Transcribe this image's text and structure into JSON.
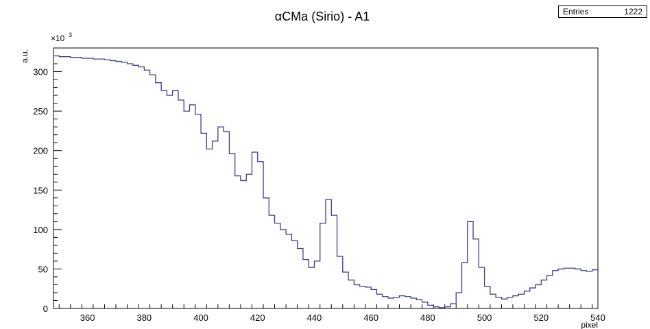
{
  "title": "αCMa (Sirio) - A1",
  "stats": {
    "label": "Entries",
    "value": "1222"
  },
  "chart_data": {
    "type": "line",
    "subtype": "step-histogram",
    "title": "αCMa (Sirio) - A1",
    "xlabel": "pixel",
    "ylabel": "a.u.",
    "y_exponent_label": "×10",
    "y_exponent_power": "3",
    "xlim": [
      348,
      540
    ],
    "ylim": [
      0,
      330
    ],
    "xticks": [
      360,
      380,
      400,
      420,
      440,
      460,
      480,
      500,
      520,
      540
    ],
    "yticks": [
      0,
      50,
      100,
      150,
      200,
      250,
      300
    ],
    "grid": false,
    "line_color": "#3b3b8f",
    "x": [
      348,
      350,
      352,
      354,
      356,
      358,
      360,
      362,
      364,
      366,
      368,
      370,
      372,
      374,
      376,
      378,
      380,
      382,
      384,
      386,
      388,
      390,
      392,
      394,
      396,
      398,
      400,
      402,
      404,
      406,
      408,
      410,
      412,
      414,
      416,
      418,
      420,
      422,
      424,
      426,
      428,
      430,
      432,
      434,
      436,
      438,
      440,
      442,
      444,
      446,
      448,
      450,
      452,
      454,
      456,
      458,
      460,
      462,
      464,
      466,
      468,
      470,
      472,
      474,
      476,
      478,
      480,
      482,
      484,
      486,
      488,
      490,
      492,
      494,
      496,
      498,
      500,
      502,
      504,
      506,
      508,
      510,
      512,
      514,
      516,
      518,
      520,
      522,
      524,
      526,
      528,
      530,
      532,
      534,
      536,
      538,
      540
    ],
    "y": [
      320,
      319,
      319,
      318,
      318,
      317,
      317,
      316,
      316,
      315,
      314,
      313,
      312,
      310,
      308,
      306,
      302,
      296,
      286,
      276,
      270,
      276,
      264,
      250,
      258,
      246,
      222,
      202,
      212,
      230,
      224,
      196,
      168,
      162,
      170,
      198,
      186,
      140,
      118,
      108,
      100,
      94,
      86,
      76,
      62,
      52,
      60,
      108,
      138,
      118,
      66,
      46,
      36,
      30,
      28,
      27,
      24,
      18,
      15,
      13,
      14,
      16,
      15,
      13,
      11,
      8,
      4,
      2,
      1,
      2,
      6,
      20,
      58,
      110,
      88,
      52,
      28,
      18,
      14,
      12,
      14,
      16,
      18,
      22,
      26,
      30,
      36,
      42,
      48,
      50,
      51,
      51,
      50,
      48,
      47,
      49,
      49
    ]
  }
}
